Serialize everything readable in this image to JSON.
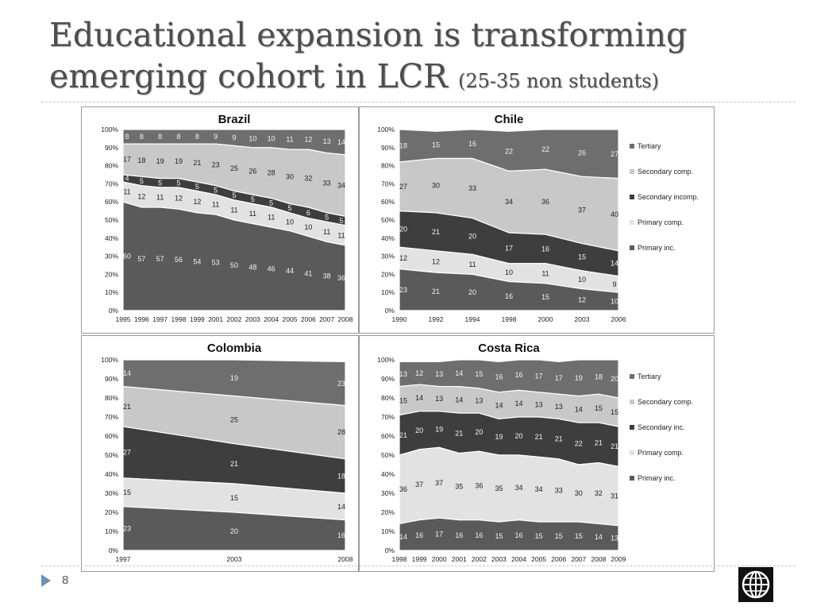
{
  "slide": {
    "title_main": "Educational expansion is transforming emerging cohort in LCR ",
    "title_sub": "(25-35 non students)",
    "page_number": "8"
  },
  "colors": {
    "tertiary": "#6e6e6e",
    "secondary_comp": "#c8c8c8",
    "secondary_incomp": "#3e3e3e",
    "primary_comp": "#e2e2e2",
    "primary_inc": "#5a5a5a"
  },
  "chart_data": [
    {
      "type": "area",
      "title": "Brazil",
      "stacked": true,
      "percent": true,
      "x": [
        "1995",
        "1996",
        "1997",
        "1998",
        "1999",
        "2001",
        "2002",
        "2003",
        "2004",
        "2005",
        "2006",
        "2007",
        "2008"
      ],
      "yticks": [
        "0%",
        "10%",
        "20%",
        "30%",
        "40%",
        "50%",
        "60%",
        "70%",
        "80%",
        "90%",
        "100%"
      ],
      "series": [
        {
          "key": "primary_inc",
          "values": [
            60,
            57,
            57,
            56,
            54,
            53,
            50,
            48,
            46,
            44,
            41,
            38,
            36
          ]
        },
        {
          "key": "primary_comp",
          "values": [
            11,
            12,
            11,
            12,
            12,
            11,
            11,
            11,
            11,
            10,
            10,
            11,
            11
          ]
        },
        {
          "key": "secondary_incomp",
          "values": [
            4,
            5,
            5,
            5,
            5,
            5,
            5,
            5,
            5,
            5,
            6,
            5,
            5
          ]
        },
        {
          "key": "secondary_comp",
          "values": [
            17,
            18,
            19,
            19,
            21,
            23,
            25,
            26,
            28,
            30,
            32,
            33,
            34
          ]
        },
        {
          "key": "tertiary",
          "values": [
            8,
            8,
            8,
            8,
            8,
            9,
            9,
            10,
            10,
            11,
            12,
            13,
            14
          ]
        }
      ],
      "ylim": [
        0,
        100
      ]
    },
    {
      "type": "area",
      "title": "Chile",
      "stacked": true,
      "percent": true,
      "x": [
        "1990",
        "1992",
        "1994",
        "1998",
        "2000",
        "2003",
        "2006"
      ],
      "yticks": [
        "0%",
        "10%",
        "20%",
        "30%",
        "40%",
        "50%",
        "60%",
        "70%",
        "80%",
        "90%",
        "100%"
      ],
      "series": [
        {
          "key": "primary_inc",
          "values": [
            23,
            21,
            20,
            16,
            15,
            12,
            10
          ]
        },
        {
          "key": "primary_comp",
          "values": [
            12,
            12,
            11,
            10,
            11,
            10,
            9
          ]
        },
        {
          "key": "secondary_incomp",
          "values": [
            20,
            21,
            20,
            17,
            16,
            15,
            14
          ]
        },
        {
          "key": "secondary_comp",
          "values": [
            27,
            30,
            33,
            34,
            36,
            37,
            40
          ]
        },
        {
          "key": "tertiary",
          "values": [
            18,
            15,
            16,
            22,
            22,
            26,
            27
          ]
        }
      ],
      "legend": [
        "Tertiary",
        "Secondary comp.",
        "Secondary incomp.",
        "Primary comp.",
        "Primary inc."
      ],
      "ylim": [
        0,
        100
      ]
    },
    {
      "type": "area",
      "title": "Colombia",
      "stacked": true,
      "percent": true,
      "x": [
        "1997",
        "2003",
        "2008"
      ],
      "yticks": [
        "0%",
        "10%",
        "20%",
        "30%",
        "40%",
        "50%",
        "60%",
        "70%",
        "80%",
        "90%",
        "100%"
      ],
      "series": [
        {
          "key": "primary_inc",
          "values": [
            23,
            20,
            16
          ]
        },
        {
          "key": "primary_comp",
          "values": [
            15,
            15,
            14
          ]
        },
        {
          "key": "secondary_incomp",
          "values": [
            27,
            21,
            18
          ]
        },
        {
          "key": "secondary_comp",
          "values": [
            21,
            25,
            28
          ]
        },
        {
          "key": "tertiary",
          "values": [
            14,
            19,
            23
          ]
        }
      ],
      "ylim": [
        0,
        100
      ]
    },
    {
      "type": "area",
      "title": "Costa Rica",
      "stacked": true,
      "percent": true,
      "x": [
        "1998",
        "1999",
        "2000",
        "2001",
        "2002",
        "2003",
        "2004",
        "2005",
        "2006",
        "2007",
        "2008",
        "2009"
      ],
      "yticks": [
        "0%",
        "10%",
        "20%",
        "30%",
        "40%",
        "50%",
        "60%",
        "70%",
        "80%",
        "90%",
        "100%"
      ],
      "series": [
        {
          "key": "primary_inc",
          "values": [
            14,
            16,
            17,
            16,
            16,
            15,
            16,
            15,
            15,
            15,
            14,
            13
          ]
        },
        {
          "key": "primary_comp",
          "values": [
            36,
            37,
            37,
            35,
            36,
            35,
            34,
            34,
            33,
            30,
            32,
            31
          ]
        },
        {
          "key": "secondary_incomp",
          "values": [
            21,
            20,
            19,
            21,
            20,
            19,
            20,
            21,
            21,
            22,
            21,
            21
          ]
        },
        {
          "key": "secondary_comp",
          "values": [
            15,
            14,
            13,
            14,
            13,
            14,
            14,
            13,
            13,
            14,
            15,
            15
          ]
        },
        {
          "key": "tertiary",
          "values": [
            13,
            12,
            13,
            14,
            15,
            16,
            16,
            17,
            17,
            19,
            18,
            20
          ]
        }
      ],
      "legend": [
        "Tertiary",
        "Secondary comp.",
        "Secondary inc.",
        "Primary comp.",
        "Primary inc."
      ],
      "ylim": [
        0,
        100
      ]
    }
  ]
}
